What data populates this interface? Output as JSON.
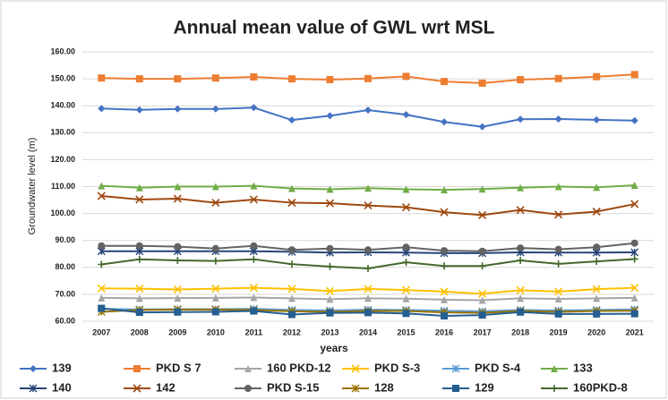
{
  "chart_data": {
    "type": "line",
    "title": "Annual mean value of GWL wrt MSL",
    "x_label": "years",
    "y_label": "Groundwater level (m)",
    "categories": [
      "2007",
      "2008",
      "2009",
      "2010",
      "2011",
      "2012",
      "2013",
      "2014",
      "2015",
      "2016",
      "2017",
      "2018",
      "2019",
      "2020",
      "2021"
    ],
    "ylim": [
      60,
      160
    ],
    "yticks": [
      {
        "value": 60,
        "label": "60.00"
      },
      {
        "value": 70,
        "label": "70.00"
      },
      {
        "value": 80,
        "label": "80.00"
      },
      {
        "value": 90,
        "label": "90.00"
      },
      {
        "value": 100,
        "label": "100.00"
      },
      {
        "value": 110,
        "label": "110.00"
      },
      {
        "value": 120,
        "label": "120.00"
      },
      {
        "value": 130,
        "label": "130.00"
      },
      {
        "value": 140,
        "label": "140.00"
      },
      {
        "value": 150,
        "label": "150.00"
      },
      {
        "value": 160,
        "label": "160.00"
      }
    ],
    "grid": true,
    "legend": "bottom",
    "series": [
      {
        "name": "139",
        "color": "#4472c4",
        "marker": "diamond",
        "values": [
          139,
          138.5,
          138.8,
          138.8,
          139.3,
          134.7,
          136.3,
          138.4,
          136.7,
          134,
          132.2,
          135,
          135.1,
          134.8,
          134.5
        ]
      },
      {
        "name": "PKD S 7",
        "color": "#ed7d31",
        "marker": "square",
        "values": [
          150.3,
          150,
          150,
          150.3,
          150.7,
          150,
          149.7,
          150.1,
          150.9,
          149,
          148.4,
          149.7,
          150.1,
          150.8,
          151.6
        ]
      },
      {
        "name": "160 PKD-12",
        "color": "#a5a5a5",
        "marker": "triangle",
        "values": [
          68.7,
          68.5,
          68.6,
          68.7,
          68.8,
          68.5,
          68.2,
          68.5,
          68.4,
          68,
          67.8,
          68.5,
          68.3,
          68.5,
          68.7
        ]
      },
      {
        "name": "PKD S-3",
        "color": "#ffc000",
        "marker": "x",
        "values": [
          72.2,
          72.1,
          71.8,
          72.1,
          72.4,
          72,
          71.2,
          72,
          71.6,
          71,
          70.2,
          71.5,
          71,
          71.9,
          72.4
        ]
      },
      {
        "name": "PKD S-4",
        "color": "#5b9bd5",
        "marker": "star",
        "values": [
          64.6,
          64.4,
          64.5,
          64.5,
          64.6,
          64.2,
          64,
          64.3,
          64.2,
          63.9,
          63.7,
          64.2,
          64,
          64.2,
          64.4
        ]
      },
      {
        "name": "133",
        "color": "#70ad47",
        "marker": "triangle",
        "values": [
          110.3,
          109.6,
          110,
          110,
          110.3,
          109.3,
          109,
          109.4,
          109,
          108.8,
          109.1,
          109.6,
          110,
          109.7,
          110.5
        ]
      },
      {
        "name": "140",
        "color": "#264478",
        "marker": "star",
        "values": [
          86,
          86,
          86,
          86,
          86,
          85.8,
          85.5,
          85.6,
          85.5,
          85.3,
          85.3,
          85.6,
          85.5,
          85.5,
          85.6
        ]
      },
      {
        "name": "142",
        "color": "#9e480e",
        "marker": "x",
        "values": [
          106.5,
          105.2,
          105.5,
          104,
          105.2,
          104,
          103.8,
          103,
          102.3,
          100.5,
          99.4,
          101.3,
          99.6,
          100.7,
          103.5
        ]
      },
      {
        "name": "PKD S-15",
        "color": "#636363",
        "marker": "circle",
        "values": [
          88,
          88,
          87.7,
          87,
          88,
          86.5,
          87,
          86.5,
          87.5,
          86.2,
          86,
          87.2,
          86.7,
          87.5,
          89
        ]
      },
      {
        "name": "128",
        "color": "#997300",
        "marker": "star",
        "values": [
          63.5,
          64.2,
          64.3,
          64.3,
          64.2,
          63.7,
          63.5,
          63.8,
          63.8,
          63.3,
          63.1,
          63.8,
          63.5,
          63.8,
          63.9
        ]
      },
      {
        "name": "129",
        "color": "#255e91",
        "marker": "square",
        "values": [
          64.8,
          63.3,
          63.4,
          63.5,
          63.8,
          62.5,
          63.1,
          63.2,
          62.9,
          62,
          62.3,
          63.4,
          62.7,
          62.7,
          62.8
        ]
      },
      {
        "name": "160PKD-8",
        "color": "#43682b",
        "marker": "plus",
        "values": [
          81.1,
          83,
          82.6,
          82.4,
          83,
          81.2,
          80.3,
          79.6,
          81.9,
          80.5,
          80.5,
          82.6,
          81.3,
          82.2,
          83.1
        ]
      }
    ]
  }
}
